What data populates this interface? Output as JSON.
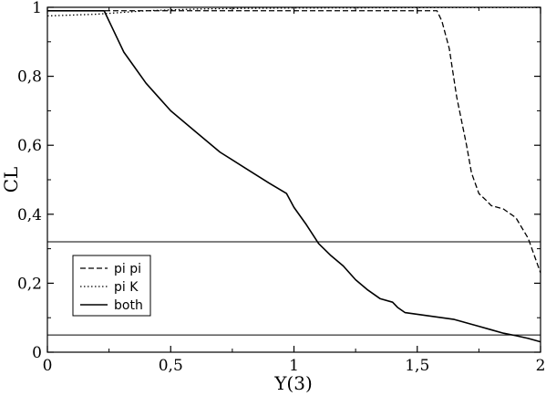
{
  "chart_data": {
    "type": "line",
    "xlabel": "Y(3)",
    "ylabel": "CL",
    "xlim": [
      0,
      2
    ],
    "ylim": [
      0,
      1
    ],
    "x_ticks": [
      0,
      0.5,
      1,
      1.5,
      2
    ],
    "x_tick_labels": [
      "0",
      "0,5",
      "1",
      "1,5",
      "2"
    ],
    "y_ticks": [
      0,
      0.2,
      0.4,
      0.6,
      0.8,
      1
    ],
    "y_tick_labels": [
      "0",
      "0,2",
      "0,4",
      "0,6",
      "0,8",
      "1"
    ],
    "grid": false,
    "legend_position": "bottom-left",
    "series": [
      {
        "name": "pi pi",
        "style": "dashed",
        "color": "#000000",
        "x": [
          0,
          0.5,
          1.0,
          1.5,
          1.58,
          1.6,
          1.63,
          1.66,
          1.7,
          1.72,
          1.75,
          1.78,
          1.8,
          1.85,
          1.9,
          1.95,
          2.0
        ],
        "y": [
          0.99,
          0.99,
          0.99,
          0.99,
          0.99,
          0.96,
          0.88,
          0.74,
          0.6,
          0.52,
          0.46,
          0.44,
          0.425,
          0.415,
          0.39,
          0.33,
          0.23
        ]
      },
      {
        "name": "pi K",
        "style": "dotted",
        "color": "#000000",
        "x": [
          0,
          0.2,
          0.4,
          0.6,
          0.8,
          1.0,
          1.5,
          2.0
        ],
        "y": [
          0.975,
          0.98,
          0.99,
          0.995,
          0.997,
          0.998,
          0.999,
          0.999
        ]
      },
      {
        "name": "both",
        "style": "solid",
        "color": "#000000",
        "x": [
          0,
          0.05,
          0.1,
          0.15,
          0.2,
          0.23,
          0.27,
          0.31,
          0.35,
          0.4,
          0.45,
          0.5,
          0.6,
          0.7,
          0.8,
          0.9,
          0.97,
          1.0,
          1.05,
          1.1,
          1.15,
          1.2,
          1.25,
          1.3,
          1.35,
          1.4,
          1.42,
          1.45,
          1.5,
          1.55,
          1.6,
          1.65,
          1.7,
          1.75,
          1.8,
          1.85,
          1.9,
          1.95,
          2.0
        ],
        "y": [
          0.99,
          0.99,
          0.99,
          0.99,
          0.99,
          0.99,
          0.93,
          0.87,
          0.83,
          0.78,
          0.74,
          0.7,
          0.64,
          0.58,
          0.535,
          0.49,
          0.46,
          0.42,
          0.37,
          0.315,
          0.28,
          0.25,
          0.21,
          0.18,
          0.155,
          0.145,
          0.13,
          0.115,
          0.11,
          0.105,
          0.1,
          0.095,
          0.085,
          0.075,
          0.065,
          0.055,
          0.048,
          0.04,
          0.03
        ]
      }
    ],
    "reference_lines": [
      {
        "orientation": "horizontal",
        "y": 0.32
      },
      {
        "orientation": "horizontal",
        "y": 0.05
      }
    ]
  }
}
